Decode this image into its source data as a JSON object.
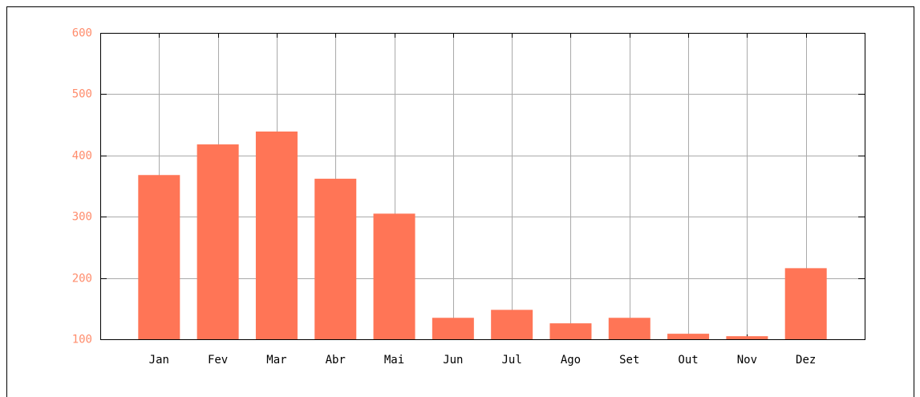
{
  "chart_data": {
    "type": "bar",
    "categories": [
      "Jan",
      "Fev",
      "Mar",
      "Abr",
      "Mai",
      "Jun",
      "Jul",
      "Ago",
      "Set",
      "Out",
      "Nov",
      "Dez"
    ],
    "values": [
      368,
      418,
      439,
      362,
      305,
      135,
      148,
      126,
      135,
      109,
      105,
      216
    ],
    "color": "#ff7556",
    "ylim": [
      100,
      600
    ],
    "yticks": [
      100,
      200,
      300,
      400,
      500,
      600
    ],
    "tick_label_color": "#ff8c6c",
    "grid": true
  }
}
